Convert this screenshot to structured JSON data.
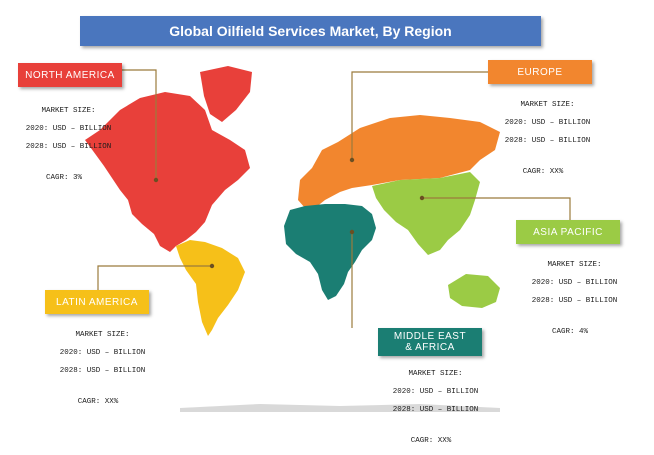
{
  "title": "Global Oilfield Services Market, By Region",
  "colors": {
    "title_bg": "#4a76be",
    "north_america": "#e8403a",
    "europe": "#f2862e",
    "asia_pacific": "#9bcb45",
    "latin_america": "#f6c019",
    "middle_east_africa": "#1b7e73",
    "unassigned": "#d9d9d9"
  },
  "regions": {
    "north_america": {
      "label": "NORTH AMERICA",
      "size_heading": "MARKET SIZE:",
      "size_2020": "2020: USD – BILLION",
      "size_2028": "2028: USD – BILLION",
      "cagr": "CAGR: 3%"
    },
    "europe": {
      "label": "EUROPE",
      "size_heading": "MARKET SIZE:",
      "size_2020": "2020: USD – BILLION",
      "size_2028": "2028: USD – BILLION",
      "cagr": "CAGR: XX%"
    },
    "asia_pacific": {
      "label": "ASIA PACIFIC",
      "size_heading": "MARKET SIZE:",
      "size_2020": "2020: USD – BILLION",
      "size_2028": "2028: USD – BILLION",
      "cagr": "CAGR: 4%"
    },
    "latin_america": {
      "label": "LATIN AMERICA",
      "size_heading": "MARKET SIZE:",
      "size_2020": "2020: USD – BILLION",
      "size_2028": "2028: USD – BILLION",
      "cagr": "CAGR: XX%"
    },
    "middle_east_africa": {
      "label_line1": "MIDDLE EAST",
      "label_line2": "& AFRICA",
      "size_heading": "MARKET SIZE:",
      "size_2020": "2020: USD – BILLION",
      "size_2028": "2028: USD – BILLION",
      "cagr": "CAGR: XX%"
    }
  }
}
